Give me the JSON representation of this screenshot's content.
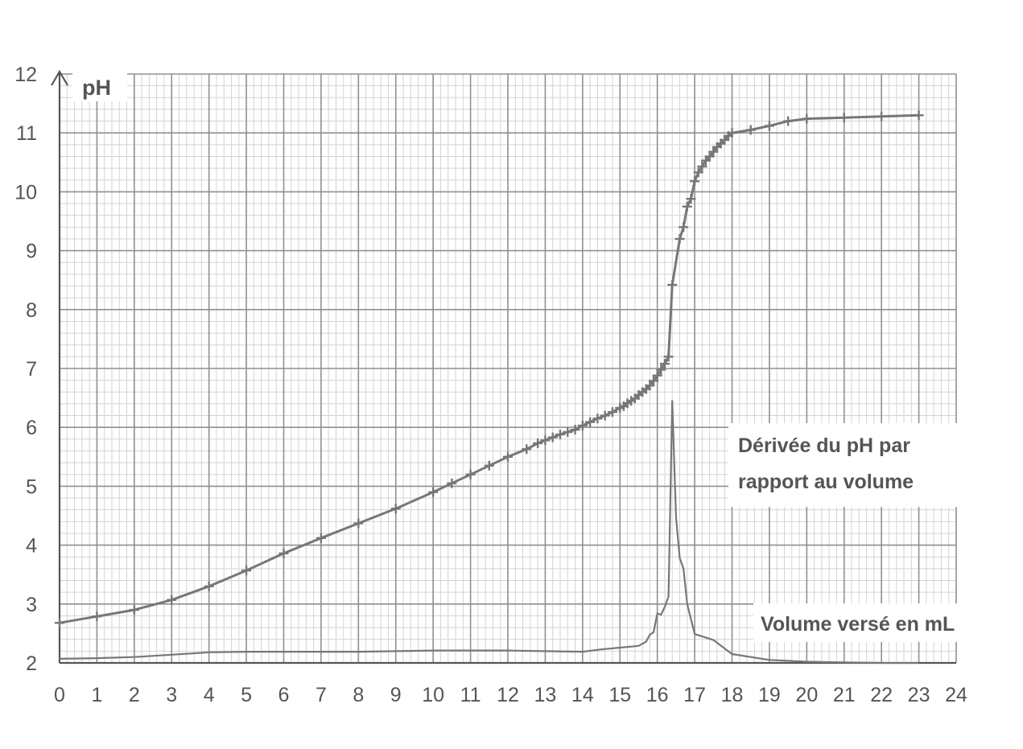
{
  "chart_data": {
    "type": "line",
    "ylabel": "pH",
    "xlabel": "Volume versé en mL",
    "annotation": "Dérivée du pH par rapport au volume",
    "annotation_lines": [
      "Dérivée du pH par",
      "rapport au volume"
    ],
    "xlim": [
      0,
      24
    ],
    "ylim": [
      2,
      12
    ],
    "grid": true,
    "x_ticks": [
      0,
      1,
      2,
      3,
      4,
      5,
      6,
      7,
      8,
      9,
      10,
      11,
      12,
      13,
      14,
      15,
      16,
      17,
      18,
      19,
      20,
      21,
      22,
      23,
      24
    ],
    "y_ticks": [
      2,
      3,
      4,
      5,
      6,
      7,
      8,
      9,
      10,
      11,
      12
    ],
    "line_color": "#777777",
    "series": [
      {
        "x": [
          0,
          1,
          2,
          3,
          4,
          5,
          6,
          7,
          8,
          9,
          10,
          10.5,
          11,
          11.5,
          12,
          12.5,
          12.8,
          13,
          13.2,
          13.4,
          13.6,
          13.8,
          14,
          14.2,
          14.4,
          14.6,
          14.8,
          15,
          15.1,
          15.2,
          15.3,
          15.4,
          15.5,
          15.6,
          15.7,
          15.8,
          15.9,
          16,
          16.1,
          16.2,
          16.3,
          16.4,
          16.6,
          16.7,
          16.8,
          16.9,
          17,
          17.1,
          17.2,
          17.3,
          17.4,
          17.5,
          17.6,
          17.7,
          17.8,
          17.9,
          18,
          18.5,
          19,
          19.5,
          20,
          21,
          22,
          23
        ],
        "y": [
          2.68,
          2.79,
          2.9,
          3.07,
          3.3,
          3.57,
          3.86,
          4.12,
          4.37,
          4.62,
          4.9,
          5.05,
          5.2,
          5.35,
          5.5,
          5.63,
          5.73,
          5.78,
          5.83,
          5.88,
          5.92,
          5.96,
          6.03,
          6.09,
          6.15,
          6.2,
          6.26,
          6.33,
          6.36,
          6.41,
          6.45,
          6.49,
          6.55,
          6.6,
          6.65,
          6.71,
          6.79,
          6.88,
          6.98,
          7.08,
          7.2,
          8.42,
          9.2,
          9.4,
          9.75,
          9.88,
          10.18,
          10.33,
          10.43,
          10.53,
          10.6,
          10.68,
          10.76,
          10.82,
          10.88,
          10.95,
          11.0,
          11.05,
          11.12,
          11.2,
          11.24,
          11.26,
          11.28,
          11.3
        ]
      },
      {
        "x": [
          0,
          1,
          2,
          3,
          4,
          5,
          6,
          7,
          8,
          9,
          10,
          11,
          12,
          13,
          14,
          14.5,
          15,
          15.5,
          15.7,
          15.8,
          15.9,
          16,
          16.1,
          16.2,
          16.3,
          16.4,
          16.5,
          16.6,
          16.7,
          16.8,
          17,
          17.5,
          18,
          19,
          20,
          21,
          22,
          23
        ],
        "y": [
          2.07,
          2.08,
          2.1,
          2.14,
          2.18,
          2.19,
          2.19,
          2.19,
          2.19,
          2.2,
          2.21,
          2.21,
          2.21,
          2.2,
          2.19,
          2.23,
          2.26,
          2.29,
          2.36,
          2.48,
          2.52,
          2.84,
          2.82,
          2.95,
          3.13,
          6.45,
          4.48,
          3.78,
          3.6,
          3.0,
          2.49,
          2.39,
          2.15,
          2.05,
          2.02,
          2.01,
          2.0,
          2.0
        ]
      }
    ]
  }
}
